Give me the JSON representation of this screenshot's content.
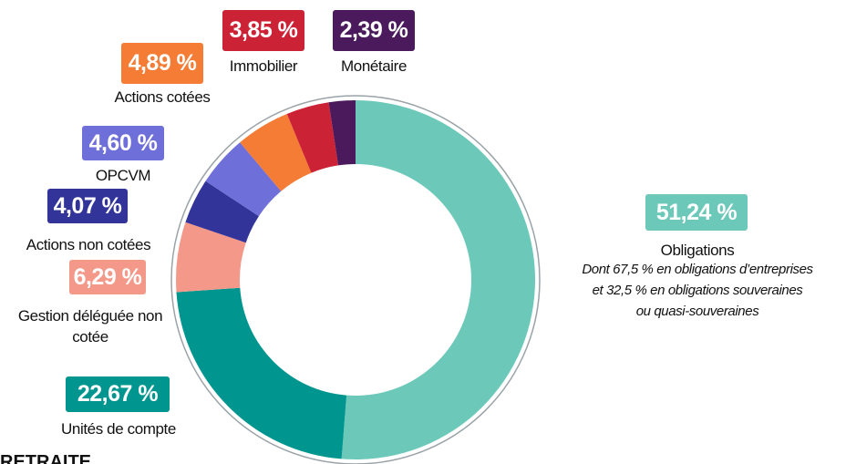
{
  "chart_data": {
    "type": "donut",
    "categories": [
      "Obligations",
      "Unités de compte",
      "Gestion déléguée non cotée",
      "Actions non cotées",
      "OPCVM",
      "Actions cotées",
      "Immobilier",
      "Monétaire"
    ],
    "values": [
      51.24,
      22.67,
      6.29,
      4.07,
      4.6,
      4.89,
      3.85,
      2.39
    ],
    "value_labels": [
      "51,24 %",
      "22,67 %",
      "6,29 %",
      "4,07 %",
      "4,60 %",
      "4,89 %",
      "3,85 %",
      "2,39 %"
    ],
    "colors": [
      "#6cc9b9",
      "#00968f",
      "#f4998a",
      "#33349a",
      "#6f6fd9",
      "#f47c34",
      "#cc2236",
      "#4a1a5c"
    ],
    "note": [
      "Dont 67,5 % en obligations d’entreprises",
      "et 32,5 % en obligations souveraines",
      "ou quasi-souveraines"
    ]
  },
  "footer": "RETRAITE"
}
